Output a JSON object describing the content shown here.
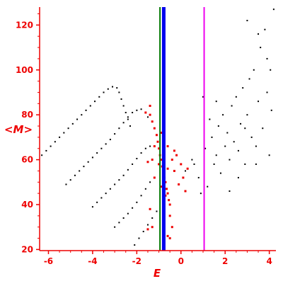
{
  "chart_data": {
    "type": "scatter",
    "title": "",
    "xlabel": "E",
    "ylabel": "<M>",
    "xlim": [
      -6.4,
      4.3
    ],
    "ylim": [
      19.5,
      128
    ],
    "xticks": [
      -6,
      -4,
      -2,
      0,
      2,
      4
    ],
    "xtick_labels": [
      "-6",
      "-4",
      "-2",
      "0",
      "2",
      "4"
    ],
    "yticks": [
      20,
      40,
      60,
      80,
      100,
      120
    ],
    "ytick_labels": [
      "20",
      "40",
      "60",
      "80",
      "100",
      "120"
    ],
    "grid": false,
    "legend": "none",
    "vlines": [
      {
        "x": -0.95,
        "color": "#007700"
      },
      {
        "x": -0.78,
        "color": "#0000ee"
      },
      {
        "x": 1.05,
        "color": "#ee00ee"
      }
    ],
    "series": [
      {
        "color": "#000000",
        "points": [
          [
            -6.3,
            62
          ],
          [
            -6.1,
            64
          ],
          [
            -5.9,
            66
          ],
          [
            -5.7,
            68
          ],
          [
            -5.5,
            70
          ],
          [
            -5.3,
            72
          ],
          [
            -5.1,
            74
          ],
          [
            -4.9,
            76
          ],
          [
            -4.7,
            78
          ],
          [
            -4.5,
            80
          ],
          [
            -4.3,
            82
          ],
          [
            -4.1,
            84
          ],
          [
            -3.9,
            86
          ],
          [
            -3.7,
            88
          ],
          [
            -3.5,
            90
          ],
          [
            -3.3,
            91.5
          ],
          [
            -3.1,
            92.5
          ],
          [
            -2.9,
            92
          ],
          [
            -2.8,
            90
          ],
          [
            -2.7,
            87
          ],
          [
            -2.6,
            84
          ],
          [
            -2.5,
            81
          ],
          [
            -2.4,
            78
          ],
          [
            -2.3,
            75
          ],
          [
            -5.2,
            49
          ],
          [
            -5.0,
            51
          ],
          [
            -4.8,
            53
          ],
          [
            -4.6,
            55
          ],
          [
            -4.4,
            57
          ],
          [
            -4.2,
            59
          ],
          [
            -4.0,
            61
          ],
          [
            -3.8,
            63
          ],
          [
            -3.6,
            65
          ],
          [
            -3.4,
            67
          ],
          [
            -3.2,
            69
          ],
          [
            -3.0,
            71.5
          ],
          [
            -2.8,
            74
          ],
          [
            -2.6,
            76.5
          ],
          [
            -2.4,
            79
          ],
          [
            -2.2,
            81
          ],
          [
            -2.0,
            82
          ],
          [
            -1.8,
            82.5
          ],
          [
            -1.6,
            81
          ],
          [
            -1.5,
            79
          ],
          [
            -4.0,
            39
          ],
          [
            -3.8,
            41
          ],
          [
            -3.6,
            43
          ],
          [
            -3.4,
            45
          ],
          [
            -3.2,
            47
          ],
          [
            -3.0,
            49
          ],
          [
            -2.8,
            51
          ],
          [
            -2.6,
            53
          ],
          [
            -2.4,
            55.5
          ],
          [
            -2.2,
            58
          ],
          [
            -2.0,
            60.5
          ],
          [
            -1.8,
            63
          ],
          [
            -1.6,
            65
          ],
          [
            -1.4,
            66
          ],
          [
            -3.0,
            30
          ],
          [
            -2.8,
            32
          ],
          [
            -2.6,
            34
          ],
          [
            -2.4,
            36
          ],
          [
            -2.2,
            38.5
          ],
          [
            -2.0,
            41
          ],
          [
            -1.8,
            44
          ],
          [
            -1.6,
            47
          ],
          [
            -1.4,
            50
          ],
          [
            -2.1,
            22
          ],
          [
            -1.9,
            25
          ],
          [
            -1.7,
            28
          ],
          [
            -1.5,
            31
          ],
          [
            -1.3,
            34
          ],
          [
            -1.1,
            37
          ],
          [
            0.2,
            55
          ],
          [
            0.5,
            60
          ],
          [
            0.8,
            52
          ],
          [
            1.1,
            65
          ],
          [
            1.2,
            48
          ],
          [
            1.4,
            70
          ],
          [
            1.5,
            58
          ],
          [
            1.6,
            62
          ],
          [
            1.7,
            75
          ],
          [
            1.8,
            54
          ],
          [
            1.9,
            80
          ],
          [
            2.0,
            66
          ],
          [
            2.1,
            72
          ],
          [
            2.2,
            60
          ],
          [
            2.3,
            84
          ],
          [
            2.4,
            68
          ],
          [
            2.5,
            88
          ],
          [
            2.6,
            64
          ],
          [
            2.7,
            76
          ],
          [
            2.8,
            92
          ],
          [
            2.9,
            58
          ],
          [
            3.0,
            80
          ],
          [
            3.1,
            96
          ],
          [
            3.2,
            70
          ],
          [
            3.3,
            100
          ],
          [
            3.4,
            66
          ],
          [
            3.5,
            86
          ],
          [
            3.6,
            110
          ],
          [
            3.7,
            74
          ],
          [
            3.8,
            118
          ],
          [
            3.9,
            90
          ],
          [
            4.0,
            62
          ],
          [
            4.05,
            100
          ],
          [
            4.1,
            82
          ],
          [
            4.2,
            127
          ],
          [
            3.5,
            116
          ],
          [
            3.9,
            105
          ],
          [
            2.6,
            52
          ],
          [
            1.3,
            78
          ],
          [
            0.9,
            45
          ],
          [
            3.0,
            122
          ],
          [
            2.2,
            46
          ],
          [
            3.4,
            58
          ],
          [
            1.6,
            86
          ],
          [
            2.9,
            74
          ],
          [
            0.6,
            58
          ],
          [
            1.0,
            88
          ]
        ]
      },
      {
        "color": "#ee0000",
        "points": [
          [
            -1.6,
            81
          ],
          [
            -1.4,
            80
          ],
          [
            -1.3,
            77
          ],
          [
            -1.2,
            74
          ],
          [
            -1.1,
            71
          ],
          [
            -1.05,
            68
          ],
          [
            -1.0,
            65
          ],
          [
            -0.95,
            62
          ],
          [
            -0.9,
            60
          ],
          [
            -0.85,
            57
          ],
          [
            -0.8,
            55
          ],
          [
            -0.75,
            52
          ],
          [
            -0.7,
            50
          ],
          [
            -0.65,
            47
          ],
          [
            -0.6,
            45
          ],
          [
            -0.55,
            42
          ],
          [
            -0.5,
            40
          ],
          [
            -1.2,
            66
          ],
          [
            -1.0,
            58
          ],
          [
            -0.8,
            63
          ],
          [
            -0.6,
            56
          ],
          [
            -0.4,
            60
          ],
          [
            -0.3,
            55
          ],
          [
            -0.2,
            62
          ],
          [
            0.0,
            58
          ],
          [
            0.1,
            52
          ],
          [
            -0.5,
            35
          ],
          [
            -0.4,
            30
          ],
          [
            -0.6,
            26
          ],
          [
            -1.3,
            30
          ],
          [
            -1.5,
            29
          ],
          [
            -1.4,
            38
          ],
          [
            -0.9,
            48
          ],
          [
            -0.7,
            44
          ],
          [
            0.2,
            46
          ],
          [
            -0.1,
            49
          ],
          [
            -1.3,
            60
          ],
          [
            -1.2,
            52
          ],
          [
            -0.9,
            72
          ],
          [
            -0.6,
            66
          ],
          [
            -0.3,
            64
          ],
          [
            0.3,
            56
          ],
          [
            -1.5,
            59
          ],
          [
            -1.4,
            84
          ],
          [
            -0.5,
            25
          ],
          [
            -0.8,
            34
          ]
        ]
      }
    ]
  }
}
